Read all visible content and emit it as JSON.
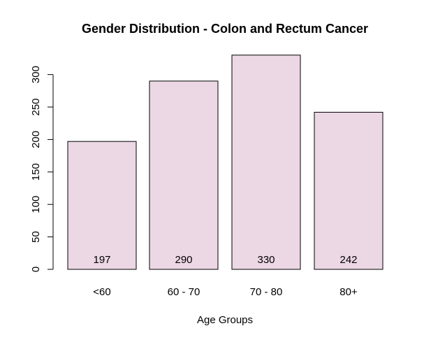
{
  "chart_data": {
    "type": "bar",
    "title": "Gender Distribution - Colon and Rectum Cancer",
    "xlabel": "Age Groups",
    "ylabel": "",
    "categories": [
      "<60",
      "60 - 70",
      "70 - 80",
      "80+"
    ],
    "values": [
      197,
      290,
      330,
      242
    ],
    "data_labels": [
      "197",
      "290",
      "330",
      "242"
    ],
    "yticks": [
      0,
      50,
      100,
      150,
      200,
      250,
      300
    ],
    "ytick_labels": [
      "0",
      "50",
      "100",
      "150",
      "200",
      "250",
      "300"
    ],
    "ylim": [
      0,
      330
    ],
    "grid": false,
    "colors": {
      "bar_fill": "#ecd7e5",
      "bar_stroke": "#000000",
      "axis": "#000000"
    }
  }
}
